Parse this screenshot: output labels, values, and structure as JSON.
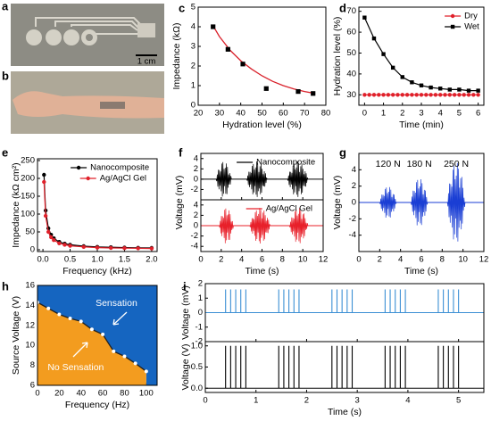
{
  "photos": [
    {
      "label": "a",
      "scale_bar": "1 cm"
    },
    {
      "label": "b"
    }
  ],
  "chart_data": [
    {
      "label": "c",
      "type": "scatter",
      "xlabel": "Hydration level (%)",
      "ylabel": "Impedance (kΩ)",
      "xlim": [
        20,
        80
      ],
      "xticks": [
        20,
        30,
        40,
        50,
        60,
        70,
        80
      ],
      "ylim": [
        0,
        5
      ],
      "yticks": [
        0,
        1,
        2,
        3,
        4,
        5
      ],
      "x": [
        27,
        34,
        41,
        52,
        67,
        74
      ],
      "values": [
        4.0,
        2.85,
        2.1,
        0.85,
        0.7,
        0.6
      ],
      "color": "#000000",
      "fit": {
        "x": [
          27,
          30,
          35,
          40,
          45,
          50,
          55,
          60,
          65,
          70,
          75
        ],
        "values": [
          4.05,
          3.5,
          2.8,
          2.27,
          1.85,
          1.5,
          1.22,
          1.0,
          0.83,
          0.7,
          0.6
        ],
        "color": "#d9202a"
      }
    },
    {
      "label": "d",
      "type": "line",
      "xlabel": "Time (min)",
      "ylabel": "Hydration level (%)",
      "xlim": [
        -0.3,
        6.3
      ],
      "xticks": [
        0,
        1,
        2,
        3,
        4,
        5,
        6
      ],
      "ylim": [
        25,
        72
      ],
      "yticks": [
        30,
        40,
        50,
        60,
        70
      ],
      "legend": "upper right",
      "series": [
        {
          "name": "Dry",
          "color": "#e0202a",
          "marker": "circle",
          "x": [
            0,
            0.25,
            0.5,
            0.75,
            1,
            1.25,
            1.5,
            1.75,
            2,
            2.25,
            2.5,
            2.75,
            3,
            3.25,
            3.5,
            3.75,
            4,
            4.25,
            4.5,
            4.75,
            5,
            5.25,
            5.5,
            5.75,
            6
          ],
          "values": [
            30,
            30,
            30,
            30,
            30,
            30,
            30,
            30,
            30,
            30,
            30,
            30,
            30,
            30,
            30,
            30,
            30,
            30,
            30,
            30,
            30,
            30,
            30,
            30,
            30
          ]
        },
        {
          "name": "Wet",
          "color": "#000000",
          "marker": "square",
          "x": [
            0,
            0.5,
            1,
            1.5,
            2,
            2.5,
            3,
            3.5,
            4,
            4.5,
            5,
            5.5,
            6
          ],
          "values": [
            67,
            57,
            49.5,
            43,
            38.5,
            36,
            34.5,
            33.5,
            33,
            32.5,
            32.5,
            32,
            32
          ]
        }
      ]
    },
    {
      "label": "e",
      "type": "line",
      "xlabel": "Frequency (kHz)",
      "ylabel": "Impedance (kΩ cm²)",
      "xlim": [
        -0.1,
        2.1
      ],
      "xticks": [
        {
          "value": 0,
          "label": "0.0"
        },
        {
          "value": 0.5,
          "label": "0.5"
        },
        {
          "value": 1,
          "label": "1.0"
        },
        {
          "value": 1.5,
          "label": "1.5"
        },
        {
          "value": 2,
          "label": "2.0"
        }
      ],
      "ylim": [
        -5,
        255
      ],
      "yticks": [
        0,
        50,
        100,
        150,
        200,
        250
      ],
      "legend": "upper right",
      "series": [
        {
          "name": "Nanocomposite",
          "color": "#000000",
          "marker": "circle",
          "x": [
            0.02,
            0.05,
            0.1,
            0.15,
            0.2,
            0.3,
            0.4,
            0.5,
            0.75,
            1.0,
            1.25,
            1.5,
            1.75,
            2.0
          ],
          "values": [
            210,
            110,
            60,
            42,
            32,
            22,
            17,
            14,
            10,
            8,
            7,
            6,
            5.5,
            5
          ]
        },
        {
          "name": "Ag/AgCl Gel",
          "color": "#e0202a",
          "marker": "circle",
          "x": [
            0.02,
            0.05,
            0.1,
            0.15,
            0.2,
            0.3,
            0.4,
            0.5,
            0.75,
            1.0,
            1.25,
            1.5,
            1.75,
            2.0
          ],
          "values": [
            190,
            95,
            50,
            35,
            27,
            18,
            14,
            11,
            8,
            6,
            5,
            4.5,
            4,
            3.5
          ]
        }
      ]
    },
    {
      "label": "f",
      "type": "signal",
      "xlabel": "Time (s)",
      "ylabel": "Voltage (mV)",
      "xlim": [
        0,
        12
      ],
      "xticks": [
        0,
        2,
        4,
        6,
        8,
        10,
        12
      ],
      "subplots": [
        {
          "ylim": [
            -4,
            5
          ],
          "yticks": [
            -2,
            0,
            2,
            4
          ],
          "series": [
            {
              "name": "Nanocomposite",
              "color": "#000000",
              "bursts": [
                {
                  "start": 1.5,
                  "end": 3.0,
                  "amplitude": 3.5
                },
                {
                  "start": 4.5,
                  "end": 6.5,
                  "amplitude": 3.5
                },
                {
                  "start": 8.5,
                  "end": 10.5,
                  "amplitude": 3.5
                }
              ]
            }
          ]
        },
        {
          "ylim": [
            -5,
            5
          ],
          "yticks": [
            -4,
            -2,
            0,
            2,
            4
          ],
          "series": [
            {
              "name": "Ag/AgCl Gel",
              "color": "#e8202a",
              "bursts": [
                {
                  "start": 1.8,
                  "end": 3.2,
                  "amplitude": 3.5
                },
                {
                  "start": 4.8,
                  "end": 6.8,
                  "amplitude": 3.5
                },
                {
                  "start": 8.7,
                  "end": 10.5,
                  "amplitude": 3.5
                }
              ]
            }
          ]
        }
      ]
    },
    {
      "label": "g",
      "type": "signal",
      "xlabel": "Time (s)",
      "ylabel": "Voltage (mV)",
      "xlim": [
        0,
        12
      ],
      "xticks": [
        0,
        2,
        4,
        6,
        8,
        10,
        12
      ],
      "subplots": [
        {
          "ylim": [
            -6,
            6
          ],
          "yticks": [
            -4,
            -2,
            0,
            2,
            4
          ],
          "series": [
            {
              "color": "#1a3ed4",
              "bursts": [
                {
                  "start": 2.0,
                  "end": 3.6,
                  "amplitude": 2,
                  "label": "120 N"
                },
                {
                  "start": 5.0,
                  "end": 6.6,
                  "amplitude": 3,
                  "label": "180 N"
                },
                {
                  "start": 8.5,
                  "end": 10.2,
                  "amplitude": 5,
                  "label": "250 N"
                }
              ]
            }
          ]
        }
      ]
    },
    {
      "label": "h",
      "type": "area",
      "xlabel": "Frequency (Hz)",
      "ylabel": "Source Voltage (V)",
      "xlim": [
        0,
        110
      ],
      "xticks": [
        0,
        20,
        40,
        60,
        80,
        100
      ],
      "ylim": [
        6,
        16
      ],
      "yticks": [
        6,
        8,
        10,
        12,
        14,
        16
      ],
      "x": [
        0,
        10,
        20,
        30,
        40,
        50,
        60,
        70,
        80,
        90,
        100
      ],
      "values": [
        14.3,
        13.7,
        13.1,
        12.7,
        12.4,
        11.6,
        11.1,
        9.4,
        8.9,
        8.2,
        7.4
      ],
      "line_color": "#222222",
      "marker_color": "#ffffff",
      "below_color": "#f39c1f",
      "above_color": "#1565c0",
      "above_label": "Sensation",
      "below_label": "No Sensation"
    },
    {
      "label": "i",
      "type": "pulse",
      "xlabel": "Time (s)",
      "xlim": [
        0,
        5.5
      ],
      "xticks": [
        0,
        1,
        2,
        3,
        4,
        5
      ],
      "x": [
        0.4,
        0.5,
        0.6,
        0.7,
        0.8,
        1.45,
        1.55,
        1.65,
        1.75,
        1.85,
        2.5,
        2.6,
        2.7,
        2.8,
        2.9,
        3.55,
        3.65,
        3.75,
        3.85,
        3.95,
        4.6,
        4.7,
        4.8,
        4.9,
        5.0
      ],
      "subplots": [
        {
          "ylabel": "Voltage (mV)",
          "ylim": [
            -2,
            2
          ],
          "yticks": [
            -2,
            -1,
            0,
            1,
            2
          ],
          "color": "#3b8fd4",
          "values": [
            1.6,
            1.6,
            1.6,
            1.6,
            1.6,
            1.6,
            1.6,
            1.6,
            1.6,
            1.6,
            1.6,
            1.6,
            1.6,
            1.6,
            1.6,
            1.6,
            1.6,
            1.6,
            1.6,
            1.6,
            1.6,
            1.6,
            1.6,
            1.6,
            1.6
          ]
        },
        {
          "ylabel": "Voltage (V)",
          "ylim": [
            -0.1,
            1.1
          ],
          "yticks": [
            {
              "value": 0,
              "label": "0.0"
            },
            {
              "value": 0.5,
              "label": "0.5"
            },
            {
              "value": 1,
              "label": "1.0"
            }
          ],
          "color": "#000000",
          "values": [
            1,
            1,
            1,
            1,
            1,
            1,
            1,
            1,
            1,
            1,
            1,
            1,
            1,
            1,
            1,
            1,
            1,
            1,
            1,
            1,
            1,
            1,
            1,
            1,
            1
          ]
        }
      ]
    }
  ]
}
